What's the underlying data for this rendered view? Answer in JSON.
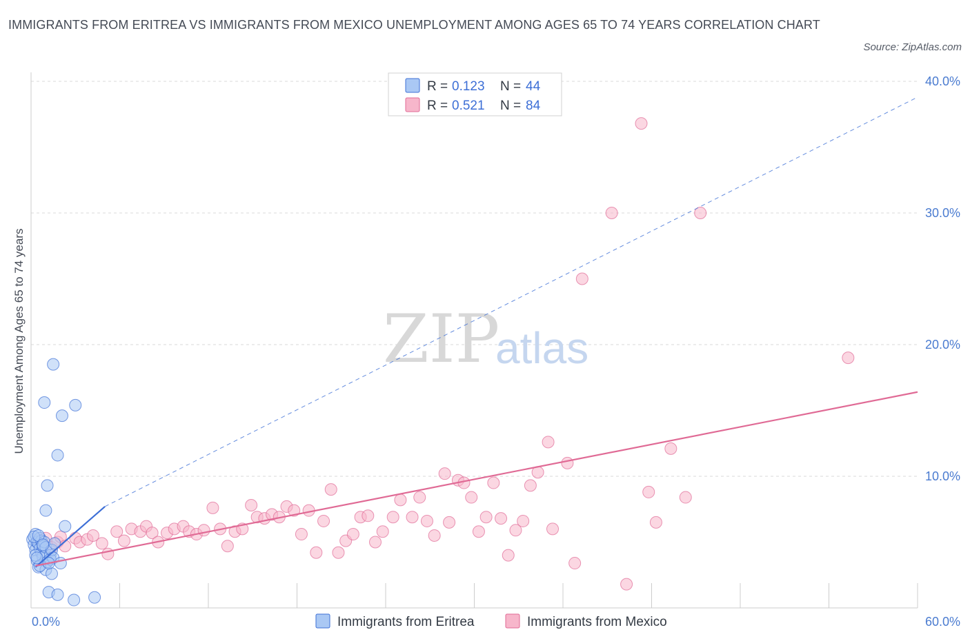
{
  "title": "IMMIGRANTS FROM ERITREA VS IMMIGRANTS FROM MEXICO UNEMPLOYMENT AMONG AGES 65 TO 74 YEARS CORRELATION CHART",
  "source": "Source: ZipAtlas.com",
  "watermark": {
    "zip": "ZIP",
    "atlas": "atlas"
  },
  "colors": {
    "eritrea": "#3d6fd6",
    "eritrea_fill": "#aac8f4",
    "mexico": "#e06a95",
    "mexico_fill": "#f7b6cb",
    "grid": "#d9d9d9",
    "tick_label": "#4a7bd0"
  },
  "legend": {
    "rows": [
      {
        "r_label": "R = ",
        "r_value": "0.123",
        "n_label": "N = ",
        "n_value": "44"
      },
      {
        "r_label": "R = ",
        "r_value": "0.521",
        "n_label": "N = ",
        "n_value": "84"
      }
    ]
  },
  "chart_data": {
    "type": "scatter",
    "ylabel": "Unemployment Among Ages 65 to 74 years",
    "xlabel": "",
    "xlim": [
      0,
      60
    ],
    "ylim": [
      0,
      40
    ],
    "x_tick_labels": {
      "left": "0.0%",
      "right": "60.0%"
    },
    "y_ticks": [
      10,
      20,
      30,
      40
    ],
    "y_tick_labels": [
      "10.0%",
      "20.0%",
      "30.0%",
      "40.0%"
    ],
    "series": [
      {
        "name": "Immigrants from Eritrea",
        "color": "#3d6fd6",
        "R": 0.123,
        "N": 44,
        "trend_solid": [
          [
            0.3,
            3.1
          ],
          [
            5.0,
            7.7
          ]
        ],
        "trend_dashed": [
          [
            5.0,
            7.7
          ],
          [
            60.0,
            38.8
          ]
        ],
        "points": [
          [
            0.1,
            5.2
          ],
          [
            0.2,
            4.8
          ],
          [
            0.3,
            5.6
          ],
          [
            0.3,
            4.4
          ],
          [
            0.4,
            5.0
          ],
          [
            0.4,
            3.6
          ],
          [
            0.5,
            4.9
          ],
          [
            0.5,
            3.1
          ],
          [
            0.6,
            4.5
          ],
          [
            0.6,
            5.3
          ],
          [
            0.7,
            4.2
          ],
          [
            0.7,
            5.1
          ],
          [
            0.8,
            3.9
          ],
          [
            0.8,
            4.7
          ],
          [
            0.9,
            5.0
          ],
          [
            1.0,
            4.6
          ],
          [
            1.0,
            7.4
          ],
          [
            1.0,
            2.9
          ],
          [
            1.1,
            3.5
          ],
          [
            1.1,
            9.3
          ],
          [
            1.2,
            1.2
          ],
          [
            1.3,
            4.0
          ],
          [
            1.3,
            3.7
          ],
          [
            1.4,
            4.4
          ],
          [
            1.4,
            2.6
          ],
          [
            1.5,
            3.8
          ],
          [
            0.9,
            15.6
          ],
          [
            1.5,
            18.5
          ],
          [
            1.8,
            11.6
          ],
          [
            2.1,
            14.6
          ],
          [
            1.8,
            1.0
          ],
          [
            2.0,
            3.4
          ],
          [
            2.3,
            6.2
          ],
          [
            2.9,
            0.6
          ],
          [
            3.0,
            15.4
          ],
          [
            4.3,
            0.8
          ],
          [
            0.3,
            4.0
          ],
          [
            0.6,
            3.2
          ],
          [
            1.2,
            3.4
          ],
          [
            0.2,
            5.4
          ],
          [
            0.5,
            5.5
          ],
          [
            0.8,
            4.8
          ],
          [
            1.6,
            4.9
          ],
          [
            0.4,
            3.8
          ]
        ]
      },
      {
        "name": "Immigrants from Mexico",
        "color": "#e06a95",
        "R": 0.521,
        "N": 84,
        "trend_solid": [
          [
            0.3,
            3.2
          ],
          [
            60.0,
            16.4
          ]
        ],
        "points": [
          [
            0.5,
            5.2
          ],
          [
            0.8,
            4.8
          ],
          [
            1.0,
            5.3
          ],
          [
            1.4,
            4.6
          ],
          [
            1.8,
            5.0
          ],
          [
            2.0,
            5.4
          ],
          [
            2.3,
            4.7
          ],
          [
            3.0,
            5.3
          ],
          [
            3.3,
            5.0
          ],
          [
            3.8,
            5.2
          ],
          [
            4.2,
            5.5
          ],
          [
            4.8,
            4.9
          ],
          [
            5.2,
            4.1
          ],
          [
            5.8,
            5.8
          ],
          [
            6.3,
            5.1
          ],
          [
            6.8,
            6.0
          ],
          [
            7.4,
            5.8
          ],
          [
            7.8,
            6.2
          ],
          [
            8.2,
            5.7
          ],
          [
            8.6,
            5.0
          ],
          [
            9.2,
            5.7
          ],
          [
            9.7,
            6.0
          ],
          [
            10.3,
            6.2
          ],
          [
            10.7,
            5.8
          ],
          [
            11.2,
            5.6
          ],
          [
            11.7,
            5.9
          ],
          [
            12.3,
            7.6
          ],
          [
            12.8,
            6.0
          ],
          [
            13.3,
            4.7
          ],
          [
            13.8,
            5.8
          ],
          [
            14.3,
            6.0
          ],
          [
            14.9,
            7.8
          ],
          [
            15.3,
            6.9
          ],
          [
            15.8,
            6.8
          ],
          [
            16.3,
            7.1
          ],
          [
            16.8,
            6.9
          ],
          [
            17.3,
            7.7
          ],
          [
            17.8,
            7.4
          ],
          [
            18.3,
            5.6
          ],
          [
            18.8,
            7.4
          ],
          [
            19.3,
            4.2
          ],
          [
            19.8,
            6.6
          ],
          [
            20.3,
            9.0
          ],
          [
            20.8,
            4.2
          ],
          [
            21.3,
            5.1
          ],
          [
            21.8,
            5.6
          ],
          [
            22.3,
            6.9
          ],
          [
            22.8,
            7.0
          ],
          [
            23.3,
            5.0
          ],
          [
            23.8,
            5.8
          ],
          [
            24.5,
            6.9
          ],
          [
            25.0,
            8.2
          ],
          [
            25.8,
            6.9
          ],
          [
            26.3,
            8.4
          ],
          [
            26.8,
            6.6
          ],
          [
            27.3,
            5.5
          ],
          [
            28.0,
            10.2
          ],
          [
            28.3,
            6.5
          ],
          [
            28.9,
            9.7
          ],
          [
            29.3,
            9.5
          ],
          [
            29.8,
            8.4
          ],
          [
            30.3,
            5.8
          ],
          [
            30.8,
            6.9
          ],
          [
            31.3,
            9.5
          ],
          [
            31.8,
            6.8
          ],
          [
            32.3,
            4.0
          ],
          [
            32.8,
            5.9
          ],
          [
            33.3,
            6.6
          ],
          [
            33.8,
            9.3
          ],
          [
            34.3,
            10.3
          ],
          [
            35.0,
            12.6
          ],
          [
            35.3,
            6.0
          ],
          [
            36.3,
            11.0
          ],
          [
            36.8,
            3.4
          ],
          [
            37.3,
            25.0
          ],
          [
            39.3,
            30.0
          ],
          [
            40.3,
            1.8
          ],
          [
            41.3,
            36.8
          ],
          [
            41.8,
            8.8
          ],
          [
            42.3,
            6.5
          ],
          [
            43.3,
            12.1
          ],
          [
            44.3,
            8.4
          ],
          [
            45.3,
            30.0
          ],
          [
            55.3,
            19.0
          ]
        ]
      }
    ]
  },
  "bottom_legend": [
    {
      "label": "Immigrants from Eritrea"
    },
    {
      "label": "Immigrants from Mexico"
    }
  ]
}
